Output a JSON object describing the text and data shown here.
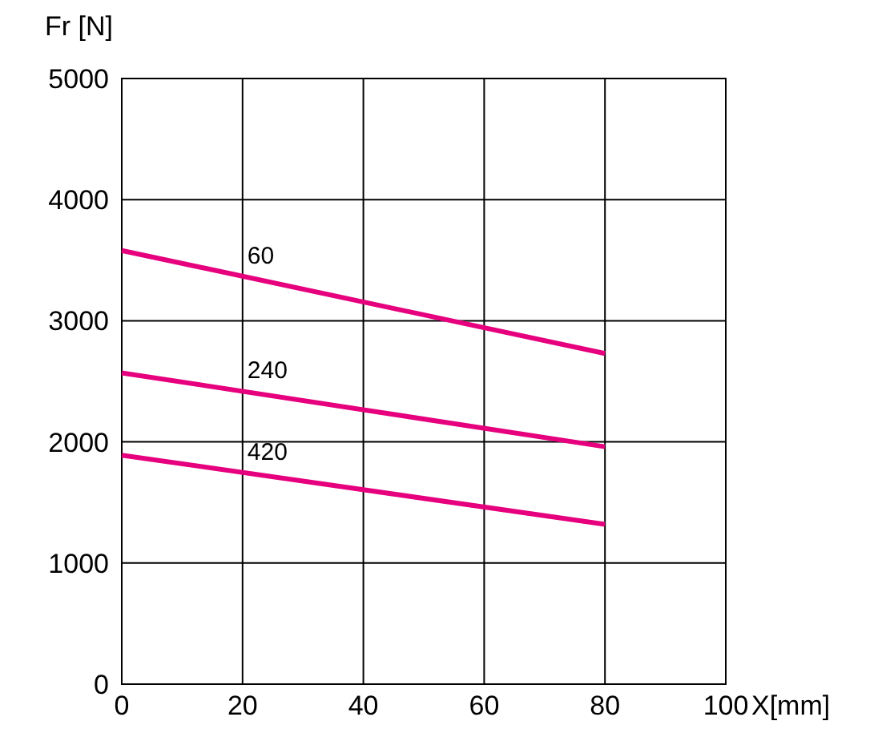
{
  "chart_data": {
    "type": "line",
    "xlabel": "X[mm]",
    "ylabel": "Fr [N]",
    "x": [
      0,
      80
    ],
    "series": [
      {
        "name": "60",
        "color": "#e6007e",
        "values": [
          3580,
          2730
        ]
      },
      {
        "name": "240",
        "color": "#e6007e",
        "values": [
          2570,
          1960
        ]
      },
      {
        "name": "420",
        "color": "#e6007e",
        "values": [
          1890,
          1320
        ]
      }
    ],
    "xlim": [
      0,
      100
    ],
    "xticks": [
      0,
      20,
      40,
      60,
      80,
      100
    ],
    "ylim": [
      0,
      5000
    ],
    "yticks": [
      0,
      1000,
      2000,
      3000,
      4000,
      5000
    ],
    "grid": true,
    "marker": "none",
    "line_style": "solid"
  }
}
